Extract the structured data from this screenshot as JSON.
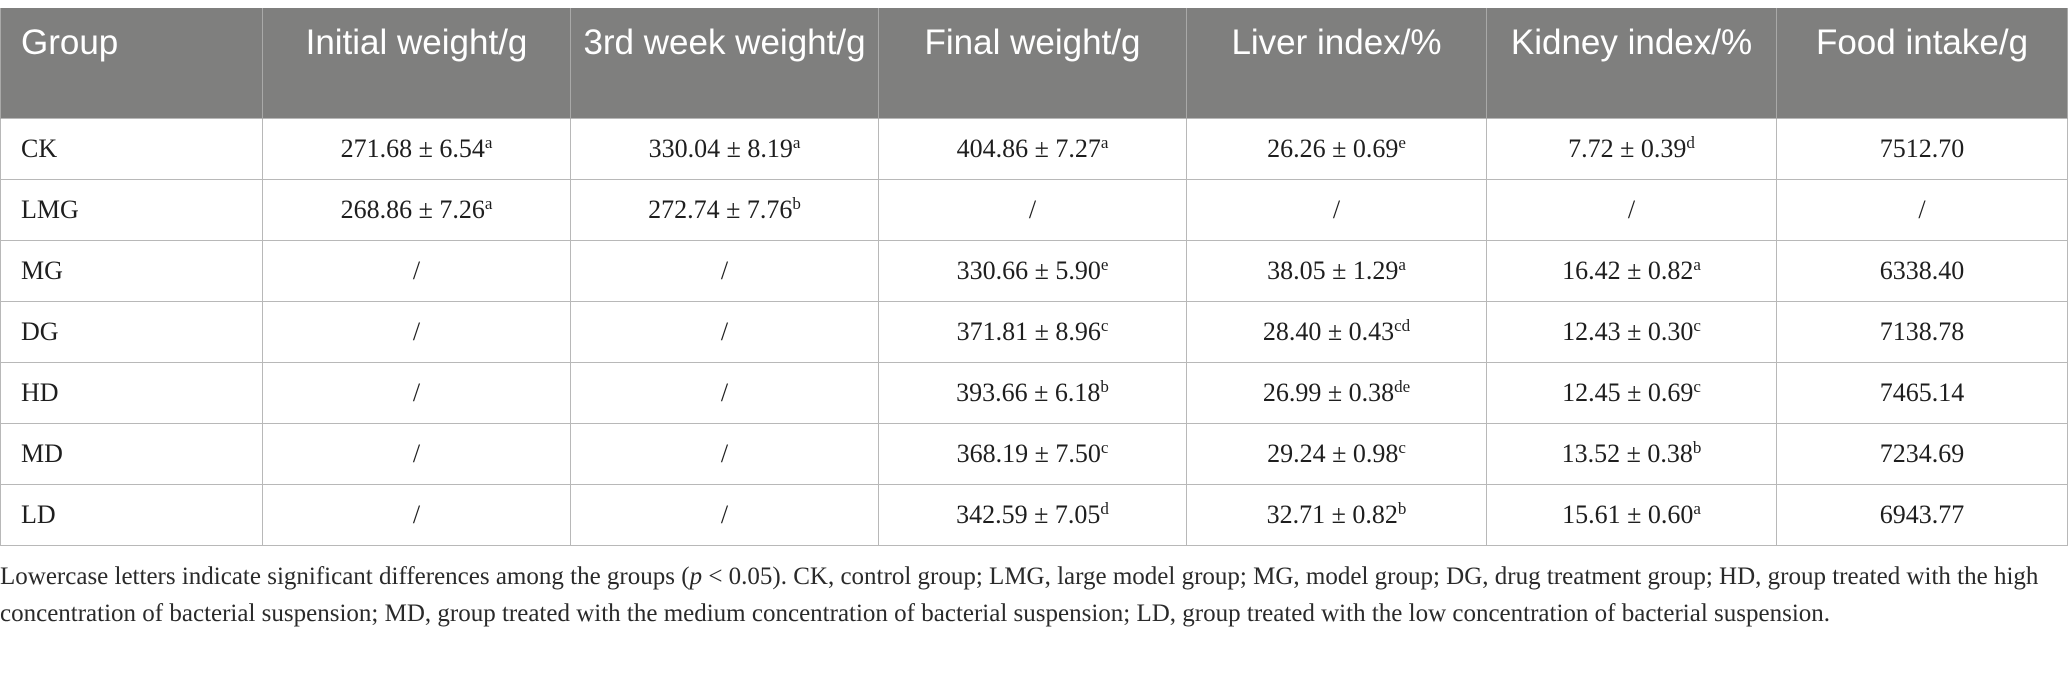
{
  "table": {
    "headers": [
      "Group",
      "Initial weight/g",
      "3rd week weight/g",
      "Final weight/g",
      "Liver index/%",
      "Kidney index/%",
      "Food intake/g"
    ],
    "rows": [
      [
        {
          "v": "CK",
          "s": ""
        },
        {
          "v": "271.68 ± 6.54",
          "s": "a"
        },
        {
          "v": "330.04 ± 8.19",
          "s": "a"
        },
        {
          "v": "404.86 ± 7.27",
          "s": "a"
        },
        {
          "v": "26.26 ± 0.69",
          "s": "e"
        },
        {
          "v": "7.72 ± 0.39",
          "s": "d"
        },
        {
          "v": "7512.70",
          "s": ""
        }
      ],
      [
        {
          "v": "LMG",
          "s": ""
        },
        {
          "v": "268.86 ± 7.26",
          "s": "a"
        },
        {
          "v": "272.74 ± 7.76",
          "s": "b"
        },
        {
          "v": "/",
          "s": ""
        },
        {
          "v": "/",
          "s": ""
        },
        {
          "v": "/",
          "s": ""
        },
        {
          "v": "/",
          "s": ""
        }
      ],
      [
        {
          "v": "MG",
          "s": ""
        },
        {
          "v": "/",
          "s": ""
        },
        {
          "v": "/",
          "s": ""
        },
        {
          "v": "330.66 ± 5.90",
          "s": "e"
        },
        {
          "v": "38.05 ± 1.29",
          "s": "a"
        },
        {
          "v": "16.42 ± 0.82",
          "s": "a"
        },
        {
          "v": "6338.40",
          "s": ""
        }
      ],
      [
        {
          "v": "DG",
          "s": ""
        },
        {
          "v": "/",
          "s": ""
        },
        {
          "v": "/",
          "s": ""
        },
        {
          "v": "371.81 ± 8.96",
          "s": "c"
        },
        {
          "v": "28.40 ± 0.43",
          "s": "cd"
        },
        {
          "v": "12.43 ± 0.30",
          "s": "c"
        },
        {
          "v": "7138.78",
          "s": ""
        }
      ],
      [
        {
          "v": "HD",
          "s": ""
        },
        {
          "v": "/",
          "s": ""
        },
        {
          "v": "/",
          "s": ""
        },
        {
          "v": "393.66 ± 6.18",
          "s": "b"
        },
        {
          "v": "26.99 ± 0.38",
          "s": "de"
        },
        {
          "v": "12.45 ± 0.69",
          "s": "c"
        },
        {
          "v": "7465.14",
          "s": ""
        }
      ],
      [
        {
          "v": "MD",
          "s": ""
        },
        {
          "v": "/",
          "s": ""
        },
        {
          "v": "/",
          "s": ""
        },
        {
          "v": "368.19 ± 7.50",
          "s": "c"
        },
        {
          "v": "29.24 ± 0.98",
          "s": "c"
        },
        {
          "v": "13.52 ± 0.38",
          "s": "b"
        },
        {
          "v": "7234.69",
          "s": ""
        }
      ],
      [
        {
          "v": "LD",
          "s": ""
        },
        {
          "v": "/",
          "s": ""
        },
        {
          "v": "/",
          "s": ""
        },
        {
          "v": "342.59 ± 7.05",
          "s": "d"
        },
        {
          "v": "32.71 ± 0.82",
          "s": "b"
        },
        {
          "v": "15.61 ± 0.60",
          "s": "a"
        },
        {
          "v": "6943.77",
          "s": ""
        }
      ]
    ]
  },
  "footnote": {
    "pre": "Lowercase letters indicate significant differences among the groups (",
    "p_var": "p",
    "post": " < 0.05). CK, control group; LMG, large model group; MG, model group; DG, drug treatment group; HD, group treated with the high concentration of bacterial suspension; MD, group treated with the medium concentration of bacterial suspension; LD, group treated with the low concentration of bacterial suspension."
  },
  "colors": {
    "header_bg": "#7f7f7e",
    "header_text": "#ffffff",
    "grid": "#b8b8b8"
  }
}
